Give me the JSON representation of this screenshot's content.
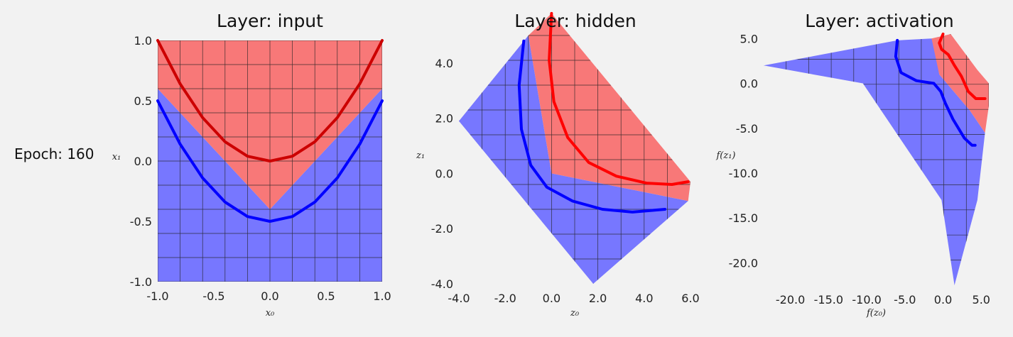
{
  "epoch_label": "Epoch: 160",
  "colors": {
    "background": "#f2f2f2",
    "region_blue": "#7777ff",
    "region_red": "#f87878",
    "curve_blue": "#0000ff",
    "curve_red_input": "#cc0000",
    "curve_red": "#ff0000",
    "grid": "#222222"
  },
  "chart_data": [
    {
      "type": "area",
      "title": "Layer: input",
      "xlabel": "x₀",
      "ylabel": "x₁",
      "xlim": [
        -1.0,
        1.0
      ],
      "ylim": [
        -1.0,
        1.0
      ],
      "x_ticks": [
        "-1.0",
        "-0.5",
        "0.0",
        "0.5",
        "1.0"
      ],
      "y_ticks": [
        "-1.0",
        "-0.5",
        "0.0",
        "0.5",
        "1.0"
      ],
      "grid": true,
      "regions": [
        {
          "name": "class-blue",
          "color": "#7777ff",
          "polygon": [
            [
              -1,
              -1
            ],
            [
              1,
              -1
            ],
            [
              1,
              0.6
            ],
            [
              0,
              -0.4
            ],
            [
              -1,
              0.6
            ]
          ]
        },
        {
          "name": "class-red",
          "color": "#f87878",
          "polygon": [
            [
              -1,
              0.6
            ],
            [
              0,
              -0.4
            ],
            [
              1,
              0.6
            ],
            [
              1,
              1
            ],
            [
              -1,
              1
            ]
          ]
        }
      ],
      "series": [
        {
          "color": "#0000ff",
          "x": [
            -1.0,
            -0.8,
            -0.6,
            -0.4,
            -0.2,
            0.0,
            0.2,
            0.4,
            0.6,
            0.8,
            1.0
          ],
          "y": [
            0.5,
            0.14,
            -0.14,
            -0.34,
            -0.46,
            -0.5,
            -0.46,
            -0.34,
            -0.14,
            0.14,
            0.5
          ]
        },
        {
          "color": "#cc0000",
          "x": [
            -1.0,
            -0.8,
            -0.6,
            -0.4,
            -0.2,
            0.0,
            0.2,
            0.4,
            0.6,
            0.8,
            1.0
          ],
          "y": [
            1.0,
            0.64,
            0.36,
            0.16,
            0.04,
            0.0,
            0.04,
            0.16,
            0.36,
            0.64,
            1.0
          ]
        }
      ]
    },
    {
      "type": "area",
      "title": "Layer: hidden",
      "xlabel": "z₀",
      "ylabel": "z₁",
      "xlim": [
        -4.0,
        6.0
      ],
      "ylim": [
        -4.0,
        5.0
      ],
      "x_ticks": [
        "-4.0",
        "-2.0",
        "0.0",
        "2.0",
        "4.0",
        "6.0"
      ],
      "y_ticks": [
        "-4.0",
        "-2.0",
        "0.0",
        "2.0",
        "4.0"
      ],
      "grid": true,
      "regions": [
        {
          "name": "class-blue",
          "color": "#7777ff",
          "polygon": [
            [
              -1.0,
              5.0
            ],
            [
              0.0,
              0.0
            ],
            [
              5.9,
              -1.0
            ],
            [
              1.8,
              -4.0
            ],
            [
              -4.0,
              1.9
            ]
          ]
        },
        {
          "name": "class-red",
          "color": "#f87878",
          "polygon": [
            [
              -1.0,
              5.0
            ],
            [
              0.0,
              5.8
            ],
            [
              6.0,
              -0.3
            ],
            [
              5.9,
              -1.0
            ],
            [
              0.0,
              0.0
            ]
          ]
        }
      ],
      "series": [
        {
          "color": "#0000ff",
          "x": [
            -1.2,
            -1.4,
            -1.3,
            -0.9,
            -0.2,
            0.9,
            2.2,
            3.5,
            4.9
          ],
          "y": [
            4.8,
            3.2,
            1.6,
            0.3,
            -0.5,
            -1.0,
            -1.3,
            -1.4,
            -1.3
          ]
        },
        {
          "color": "#ff0000",
          "x": [
            0.0,
            -0.1,
            0.1,
            0.7,
            1.6,
            2.8,
            4.1,
            5.2,
            5.9
          ],
          "y": [
            5.8,
            4.1,
            2.6,
            1.3,
            0.4,
            -0.1,
            -0.35,
            -0.4,
            -0.3
          ]
        }
      ]
    },
    {
      "type": "area",
      "title": "Layer: activation",
      "xlabel": "f(z₀)",
      "ylabel": "f(z₁)",
      "xlim": [
        -23.5,
        6.0
      ],
      "ylim": [
        -22.5,
        5.5
      ],
      "x_ticks": [
        "-20.0",
        "-15.0",
        "-10.0",
        "-5.0",
        "0.0",
        "5.0"
      ],
      "y_ticks": [
        "-20.0",
        "-15.0",
        "-10.0",
        "-5.0",
        "0.0",
        "5.0"
      ],
      "grid": true,
      "regions": [
        {
          "name": "class-blue",
          "color": "#7777ff",
          "polygon": [
            [
              -23.5,
              2.0
            ],
            [
              -6.0,
              4.8
            ],
            [
              -1.5,
              5.0
            ],
            [
              -1.0,
              4.5
            ],
            [
              -0.5,
              1.0
            ],
            [
              3.5,
              -3.0
            ],
            [
              5.5,
              -5.5
            ],
            [
              4.5,
              -13.0
            ],
            [
              1.5,
              -22.5
            ],
            [
              -0.2,
              -13.0
            ],
            [
              -10.5,
              0.0
            ]
          ]
        },
        {
          "name": "class-red",
          "color": "#f87878",
          "polygon": [
            [
              -1.5,
              5.0
            ],
            [
              1.0,
              5.5
            ],
            [
              4.5,
              1.5
            ],
            [
              6.0,
              0.0
            ],
            [
              6.0,
              -2.5
            ],
            [
              5.5,
              -5.5
            ],
            [
              3.5,
              -3.0
            ],
            [
              -0.5,
              1.0
            ]
          ]
        }
      ],
      "series": [
        {
          "color": "#0000ff",
          "x": [
            -6.0,
            -6.2,
            -5.5,
            -3.5,
            -1.2,
            -0.3,
            0.3,
            1.3,
            2.8,
            3.8,
            4.2
          ],
          "y": [
            4.8,
            3.0,
            1.2,
            0.3,
            0.0,
            -0.9,
            -2.2,
            -4.0,
            -6.1,
            -6.9,
            -6.9
          ]
        },
        {
          "color": "#ff0000",
          "x": [
            0.0,
            -0.5,
            -0.2,
            0.7,
            1.5,
            2.4,
            3.3,
            4.3,
            5.5
          ],
          "y": [
            5.5,
            4.5,
            3.8,
            3.2,
            2.0,
            0.8,
            -0.9,
            -1.7,
            -1.7
          ]
        }
      ]
    }
  ]
}
